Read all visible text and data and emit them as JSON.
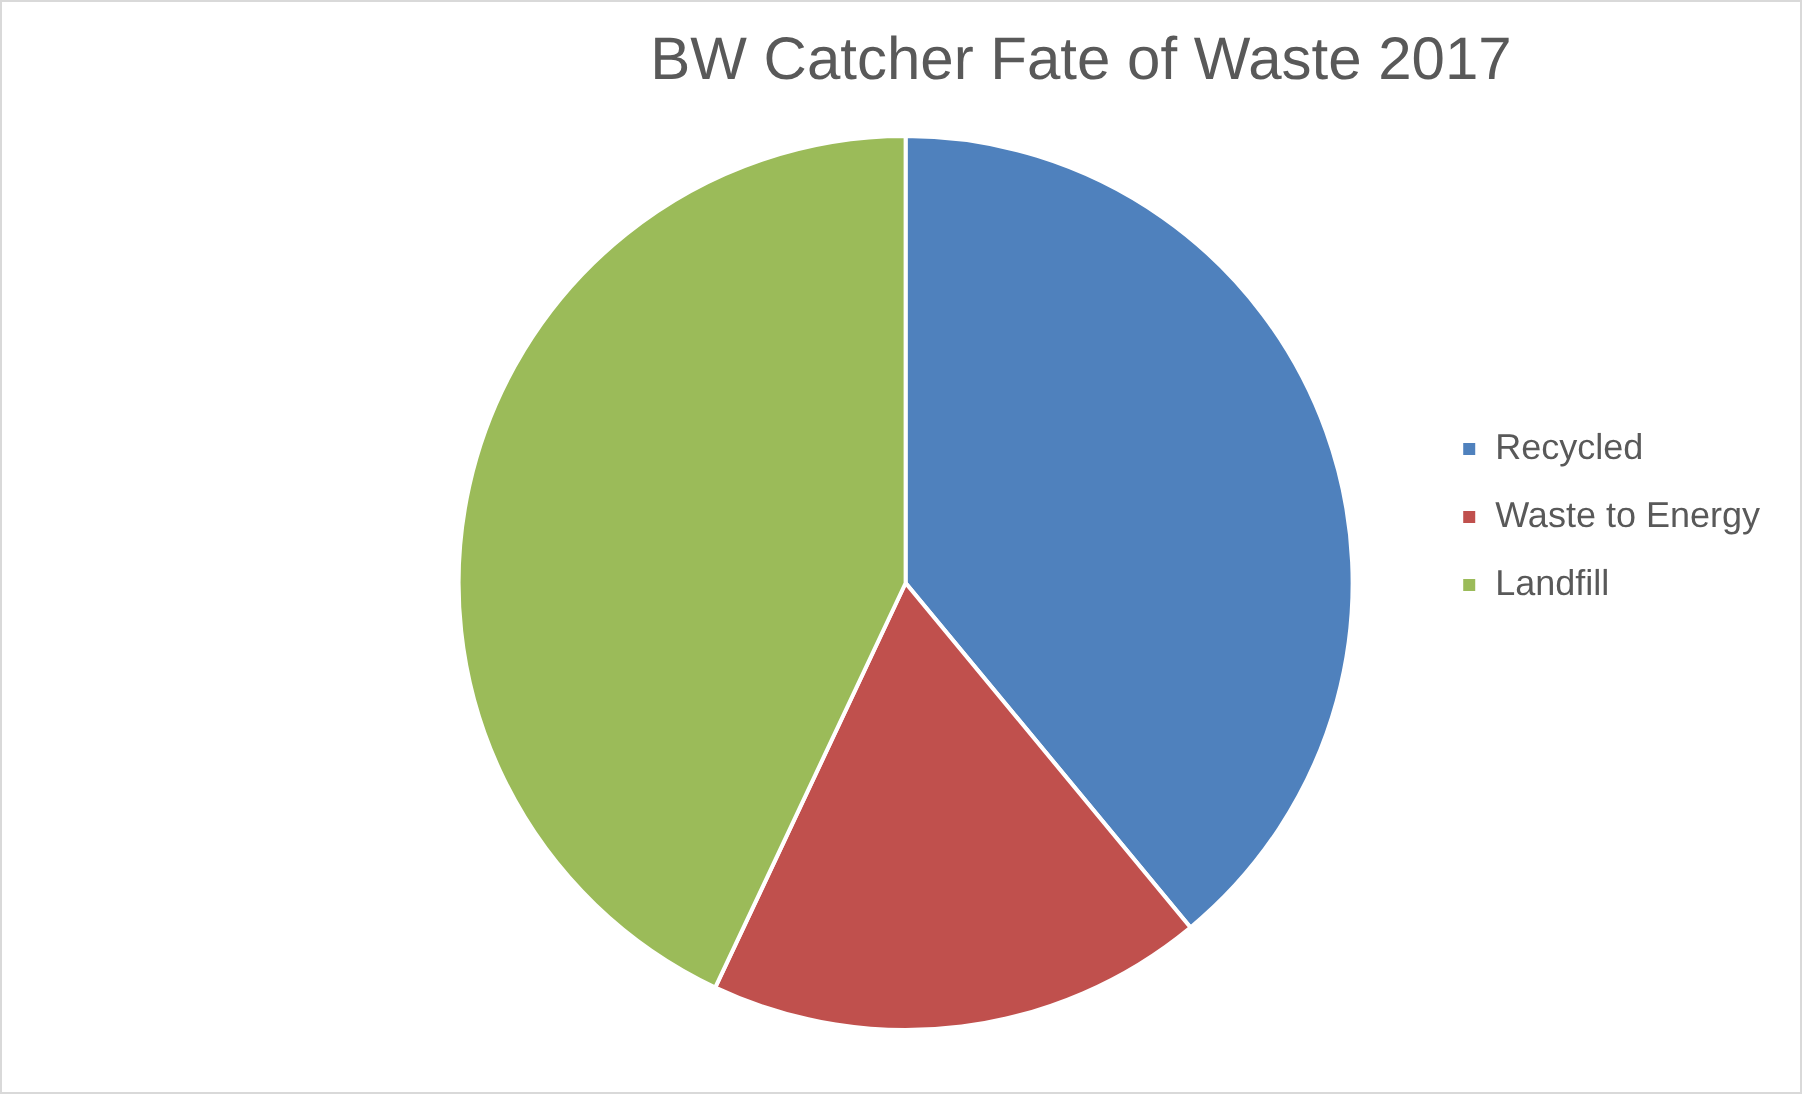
{
  "chart_data": {
    "type": "pie",
    "title": "BW Catcher Fate of Waste 2017",
    "categories": [
      "Recycled",
      "Waste to Energy",
      "Landfill"
    ],
    "values": [
      39,
      18,
      43
    ],
    "colors": [
      "#4f81bd",
      "#c0504d",
      "#9bbb59"
    ],
    "legend": "right"
  }
}
